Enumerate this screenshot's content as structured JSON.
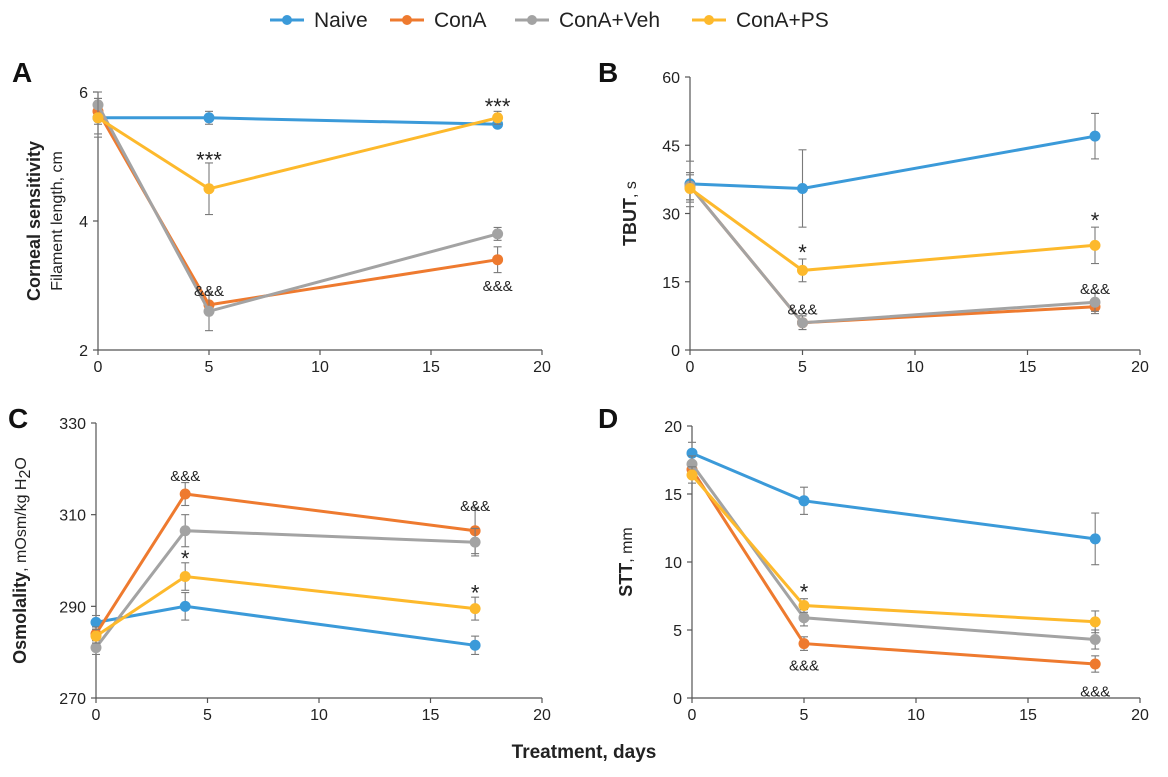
{
  "colors": {
    "Naive": "#3b9ad9",
    "ConA": "#ee7a2f",
    "ConA+Veh": "#a3a3a3",
    "ConA+PS": "#fdb92c"
  },
  "legend": [
    "Naive",
    "ConA",
    "ConA+Veh",
    "ConA+PS"
  ],
  "xlabel": "Treatment, days",
  "chart_data": [
    {
      "type": "line",
      "panel": "A",
      "ylabel": {
        "bold": "Corneal sensitivity",
        "normal": "Filament length,  cm"
      },
      "xlim": [
        0,
        20
      ],
      "ylim": [
        2,
        6
      ],
      "xticks": [
        "0",
        "5",
        "10",
        "15",
        "20"
      ],
      "yticks": [
        "2",
        "4",
        "6"
      ],
      "grid": false,
      "series": [
        {
          "name": "Naive",
          "x": [
            0,
            5,
            18
          ],
          "y": [
            5.6,
            5.6,
            5.5
          ],
          "err": [
            0.25,
            0.1,
            0.05
          ]
        },
        {
          "name": "ConA",
          "x": [
            0,
            5,
            18
          ],
          "y": [
            5.7,
            2.7,
            3.4
          ],
          "err": [
            0.2,
            0.15,
            0.2
          ]
        },
        {
          "name": "ConA+Veh",
          "x": [
            0,
            5,
            18
          ],
          "y": [
            5.8,
            2.6,
            3.8
          ],
          "err": [
            0.2,
            0.3,
            0.1
          ]
        },
        {
          "name": "ConA+PS",
          "x": [
            0,
            5,
            18
          ],
          "y": [
            5.6,
            4.5,
            5.6
          ],
          "err": [
            0.3,
            0.4,
            0.1
          ]
        }
      ],
      "annotations": [
        {
          "text": "***",
          "x": 5,
          "y": 4.95
        },
        {
          "text": "***",
          "x": 18,
          "y": 5.78
        },
        {
          "text": "&&&",
          "x": 5,
          "y": 2.92
        },
        {
          "text": "&&&",
          "x": 18,
          "y": 3.0
        }
      ]
    },
    {
      "type": "line",
      "panel": "B",
      "ylabel": {
        "bold": "TBUT",
        "normal": ", s"
      },
      "xlim": [
        0,
        20
      ],
      "ylim": [
        0,
        60
      ],
      "xticks": [
        "0",
        "5",
        "10",
        "15",
        "20"
      ],
      "yticks": [
        "0",
        "15",
        "30",
        "45",
        "60"
      ],
      "grid": false,
      "series": [
        {
          "name": "Naive",
          "x": [
            0,
            5,
            18
          ],
          "y": [
            36.5,
            35.5,
            47
          ],
          "err": [
            5,
            8.5,
            5
          ]
        },
        {
          "name": "ConA",
          "x": [
            0,
            5,
            18
          ],
          "y": [
            36,
            6,
            9.5
          ],
          "err": [
            3,
            1.5,
            1.5
          ]
        },
        {
          "name": "ConA+Veh",
          "x": [
            0,
            5,
            18
          ],
          "y": [
            36,
            6,
            10.5
          ],
          "err": [
            3,
            1.5,
            2
          ]
        },
        {
          "name": "ConA+PS",
          "x": [
            0,
            5,
            18
          ],
          "y": [
            35.5,
            17.5,
            23
          ],
          "err": [
            3,
            2.5,
            4
          ]
        }
      ],
      "annotations": [
        {
          "text": "*",
          "x": 5,
          "y": 21.5
        },
        {
          "text": "*",
          "x": 18,
          "y": 28.5
        },
        {
          "text": "&&&",
          "x": 5,
          "y": 9
        },
        {
          "text": "&&&",
          "x": 18,
          "y": 13.5
        }
      ]
    },
    {
      "type": "line",
      "panel": "C",
      "ylabel": {
        "bold": "Osmolality",
        "normal": ", mOsm/kg H",
        "sub": "2",
        "tail": "O"
      },
      "xlim": [
        0,
        20
      ],
      "ylim": [
        270,
        330
      ],
      "xticks": [
        "0",
        "5",
        "10",
        "15",
        "20"
      ],
      "yticks": [
        "270",
        "290",
        "310",
        "330"
      ],
      "grid": false,
      "series": [
        {
          "name": "Naive",
          "x": [
            0,
            4,
            17
          ],
          "y": [
            286.5,
            290,
            281.5
          ],
          "err": [
            1.5,
            3,
            2
          ]
        },
        {
          "name": "ConA",
          "x": [
            0,
            4,
            17
          ],
          "y": [
            284,
            314.5,
            306.5
          ],
          "err": [
            1.5,
            2.5,
            5
          ]
        },
        {
          "name": "ConA+Veh",
          "x": [
            0,
            4,
            17
          ],
          "y": [
            281,
            306.5,
            304
          ],
          "err": [
            1.5,
            3.5,
            3
          ]
        },
        {
          "name": "ConA+PS",
          "x": [
            0,
            4,
            17
          ],
          "y": [
            283.5,
            296.5,
            289.5
          ],
          "err": [
            1.5,
            3,
            2.5
          ]
        }
      ],
      "annotations": [
        {
          "text": "&&&",
          "x": 4,
          "y": 318.5
        },
        {
          "text": "&&&",
          "x": 17,
          "y": 312
        },
        {
          "text": "*",
          "x": 4,
          "y": 300.5
        },
        {
          "text": "*",
          "x": 17,
          "y": 293
        }
      ]
    },
    {
      "type": "line",
      "panel": "D",
      "ylabel": {
        "bold": "STT",
        "normal": ",  mm"
      },
      "xlim": [
        0,
        20
      ],
      "ylim": [
        0,
        20
      ],
      "xticks": [
        "0",
        "5",
        "10",
        "15",
        "20"
      ],
      "yticks": [
        "0",
        "5",
        "10",
        "15",
        "20"
      ],
      "grid": false,
      "series": [
        {
          "name": "Naive",
          "x": [
            0,
            5,
            18
          ],
          "y": [
            18,
            14.5,
            11.7
          ],
          "err": [
            0.8,
            1,
            1.9
          ]
        },
        {
          "name": "ConA",
          "x": [
            0,
            5,
            18
          ],
          "y": [
            16.8,
            4,
            2.5
          ],
          "err": [
            0.6,
            0.5,
            0.6
          ]
        },
        {
          "name": "ConA+Veh",
          "x": [
            0,
            5,
            18
          ],
          "y": [
            17.2,
            5.9,
            4.3
          ],
          "err": [
            0.6,
            0.6,
            0.7
          ]
        },
        {
          "name": "ConA+PS",
          "x": [
            0,
            5,
            18
          ],
          "y": [
            16.4,
            6.8,
            5.6
          ],
          "err": [
            0.6,
            0.5,
            0.8
          ]
        }
      ],
      "annotations": [
        {
          "text": "*",
          "x": 5,
          "y": 7.8
        },
        {
          "text": "&&&",
          "x": 5,
          "y": 2.4
        },
        {
          "text": "&&&",
          "x": 18,
          "y": 0.5
        }
      ]
    }
  ]
}
